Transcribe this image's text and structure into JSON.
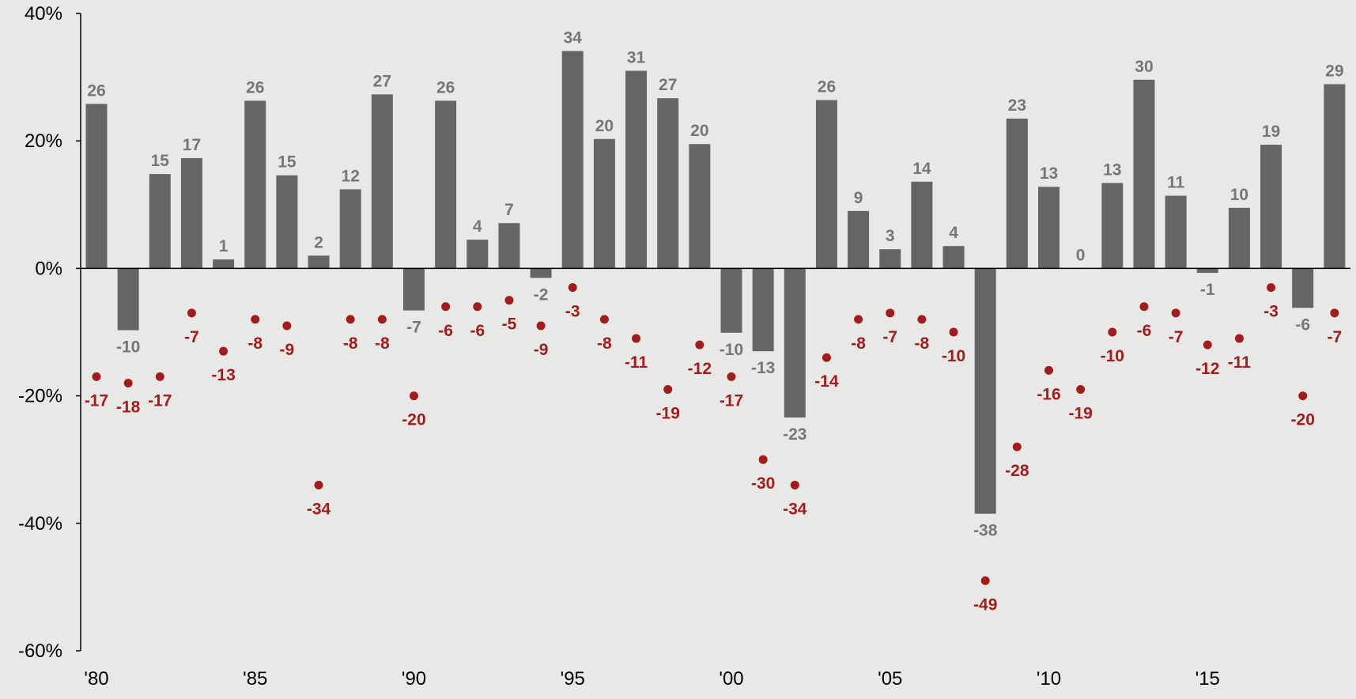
{
  "chart_data": {
    "type": "bar",
    "title": "",
    "xlabel": "",
    "ylabel": "",
    "ylim": [
      -60,
      40
    ],
    "yticks": [
      "40%",
      "20%",
      "0%",
      "-20%",
      "-40%",
      "-60%"
    ],
    "ytick_values": [
      40,
      20,
      0,
      -20,
      -40,
      -60
    ],
    "x_tick_labels": [
      {
        "year": 1980,
        "label": "'80"
      },
      {
        "year": 1985,
        "label": "'85"
      },
      {
        "year": 1990,
        "label": "'90"
      },
      {
        "year": 1995,
        "label": "'95"
      },
      {
        "year": 2000,
        "label": "'00"
      },
      {
        "year": 2005,
        "label": "'05"
      },
      {
        "year": 2010,
        "label": "'10"
      },
      {
        "year": 2015,
        "label": "'15"
      }
    ],
    "colors": {
      "bar": "#656565",
      "bar_label": "#767676",
      "dot": "#a31c1c",
      "background": "#e8e8e6",
      "axis": "#000000"
    },
    "categories": [
      1980,
      1981,
      1982,
      1983,
      1984,
      1985,
      1986,
      1987,
      1988,
      1989,
      1990,
      1991,
      1992,
      1993,
      1994,
      1995,
      1996,
      1997,
      1998,
      1999,
      2000,
      2001,
      2002,
      2003,
      2004,
      2005,
      2006,
      2007,
      2008,
      2009,
      2010,
      2011,
      2012,
      2013,
      2014,
      2015,
      2016,
      2017,
      2018,
      2019
    ],
    "series": [
      {
        "type": "bar",
        "values": [
          25.8,
          -9.7,
          14.8,
          17.3,
          1.4,
          26.3,
          14.6,
          2.0,
          12.4,
          27.3,
          -6.6,
          26.3,
          4.5,
          7.1,
          -1.5,
          34.1,
          20.3,
          31.0,
          26.7,
          19.5,
          -10.1,
          -13.0,
          -23.4,
          26.4,
          9.0,
          3.0,
          13.6,
          3.5,
          -38.5,
          23.5,
          12.8,
          0.0,
          13.4,
          29.6,
          11.4,
          -0.7,
          9.5,
          19.4,
          -6.2,
          28.9
        ],
        "labels": [
          "26",
          "-10",
          "15",
          "17",
          "1",
          "26",
          "15",
          "2",
          "12",
          "27",
          "-7",
          "26",
          "4",
          "7",
          "-2",
          "34",
          "20",
          "31",
          "27",
          "20",
          "-10",
          "-13",
          "-23",
          "26",
          "9",
          "3",
          "14",
          "4",
          "-38",
          "23",
          "13",
          "0",
          "13",
          "30",
          "11",
          "-1",
          "10",
          "19",
          "-6",
          "29"
        ]
      },
      {
        "type": "scatter",
        "values": [
          -17,
          -18,
          -17,
          -7,
          -13,
          -8,
          -9,
          -34,
          -8,
          -8,
          -20,
          -6,
          -6,
          -5,
          -9,
          -3,
          -8,
          -11,
          -19,
          -12,
          -17,
          -30,
          -34,
          -14,
          -8,
          -7,
          -8,
          -10,
          -49,
          -28,
          -16,
          -19,
          -10,
          -6,
          -7,
          -12,
          -11,
          -3,
          -20,
          -7
        ],
        "labels": [
          "-17",
          "-18",
          "-17",
          "-7",
          "-13",
          "-8",
          "-9",
          "-34",
          "-8",
          "-8",
          "-20",
          "-6",
          "-6",
          "-5",
          "-9",
          "-3",
          "-8",
          "-11",
          "-19",
          "-12",
          "-17",
          "-30",
          "-34",
          "-14",
          "-8",
          "-7",
          "-8",
          "-10",
          "-49",
          "-28",
          "-16",
          "-19",
          "-10",
          "-6",
          "-7",
          "-12",
          "-11",
          "-3",
          "-20",
          "-7"
        ]
      }
    ]
  }
}
